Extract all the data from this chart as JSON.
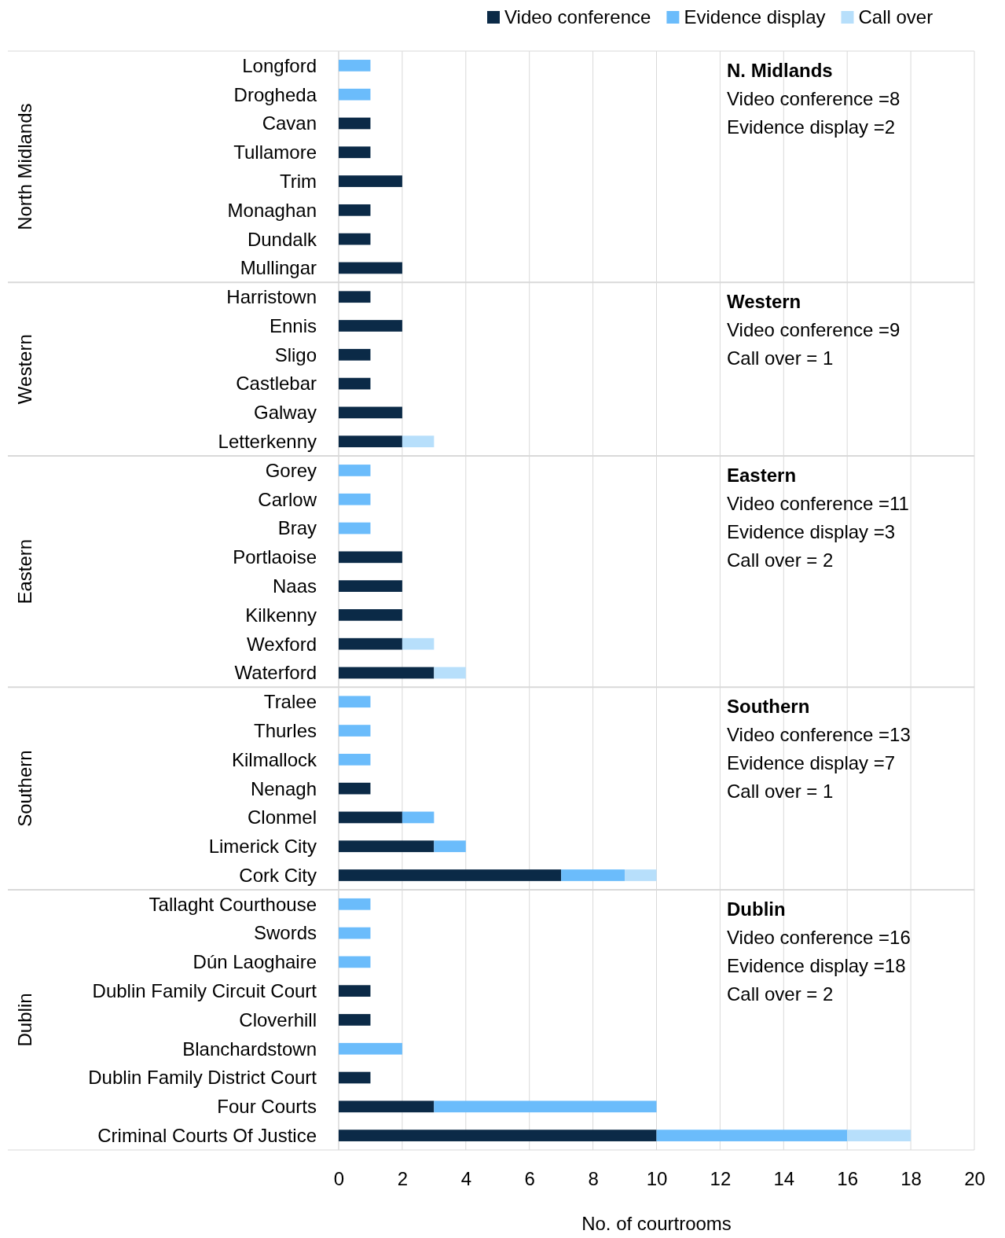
{
  "chart_data": {
    "type": "bar",
    "orientation": "horizontal",
    "stacked": true,
    "xlabel": "No. of courtrooms",
    "xlim": [
      0,
      20
    ],
    "xticks": [
      0,
      2,
      4,
      6,
      8,
      10,
      12,
      14,
      16,
      18,
      20
    ],
    "grid": "x",
    "legend": "top right",
    "categories": [
      "Longford",
      "Drogheda",
      "Cavan",
      "Tullamore",
      "Trim",
      "Monaghan",
      "Dundalk",
      "Mullingar",
      "Harristown",
      "Ennis",
      "Sligo",
      "Castlebar",
      "Galway",
      "Letterkenny",
      "Gorey",
      "Carlow",
      "Bray",
      "Portlaoise",
      "Naas",
      "Kilkenny",
      "Wexford",
      "Waterford",
      "Tralee",
      "Thurles",
      "Kilmallock",
      "Nenagh",
      "Clonmel",
      "Limerick City",
      "Cork City",
      "Tallaght Courthouse",
      "Swords",
      "Dún Laoghaire",
      "Dublin Family Circuit Court",
      "Cloverhill",
      "Blanchardstown",
      "Dublin Family District Court",
      "Four Courts",
      "Criminal Courts Of Justice"
    ],
    "series": [
      {
        "name": "Video conference",
        "color": "#0b2a47",
        "values": [
          0,
          0,
          1,
          1,
          2,
          1,
          1,
          2,
          1,
          2,
          1,
          1,
          2,
          2,
          0,
          0,
          0,
          2,
          2,
          2,
          2,
          3,
          0,
          0,
          0,
          1,
          2,
          3,
          7,
          0,
          0,
          0,
          1,
          1,
          0,
          1,
          3,
          10
        ]
      },
      {
        "name": "Evidence display",
        "color": "#6bbcfb",
        "values": [
          1,
          1,
          0,
          0,
          0,
          0,
          0,
          0,
          0,
          0,
          0,
          0,
          0,
          0,
          1,
          1,
          1,
          0,
          0,
          0,
          0,
          0,
          1,
          1,
          1,
          0,
          1,
          1,
          2,
          1,
          1,
          1,
          0,
          0,
          2,
          0,
          7,
          6
        ]
      },
      {
        "name": "Call over",
        "color": "#b7dffb",
        "values": [
          0,
          0,
          0,
          0,
          0,
          0,
          0,
          0,
          0,
          0,
          0,
          0,
          0,
          1,
          0,
          0,
          0,
          0,
          0,
          0,
          1,
          1,
          0,
          0,
          0,
          0,
          0,
          0,
          1,
          0,
          0,
          0,
          0,
          0,
          0,
          0,
          0,
          2
        ]
      }
    ],
    "annotations": [
      "North Midlands",
      "N. Midlands\nVideo conference =8\nEvidence display =2",
      "Western",
      "Western\nVideo conference =9\nCall over = 1",
      "Eastern",
      "Eastern\nVideo conference =11\nEvidence display =3\nCall over = 2",
      "Southern",
      "Southern\nVideo conference =13\nEvidence display =7\nCall over = 1",
      "Dublin",
      "Dublin\nVideo conference =16\nEvidence display =18\nCall over = 2"
    ]
  }
}
